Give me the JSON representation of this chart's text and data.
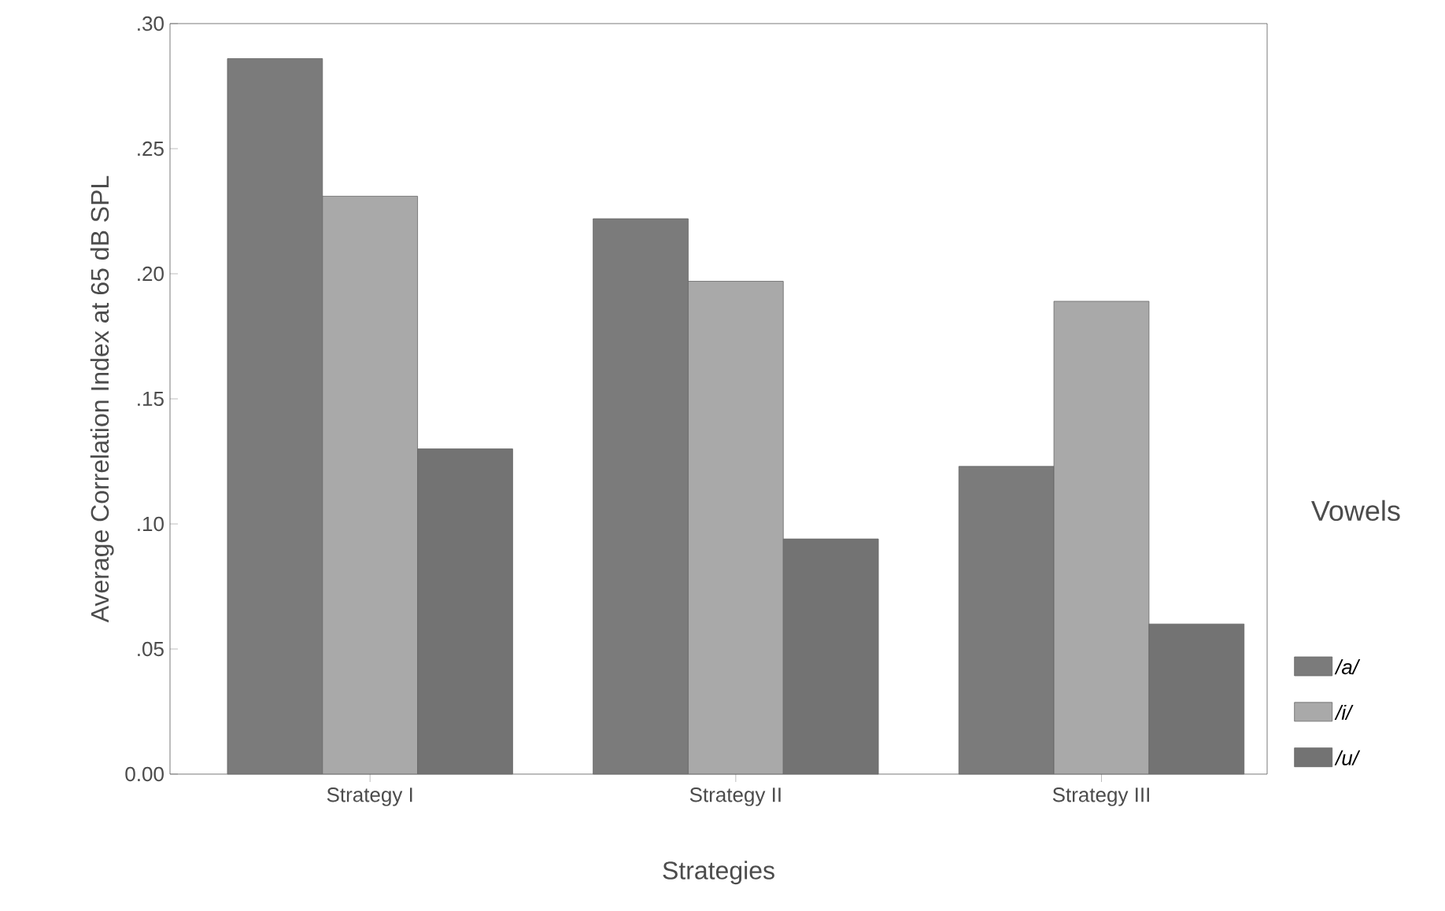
{
  "chart_data": {
    "type": "bar",
    "xlabel": "Strategies",
    "ylabel": "Average Correlation Index at 65 dB SPL",
    "legend_title": "Vowels",
    "categories": [
      "Strategy I",
      "Strategy II",
      "Strategy III"
    ],
    "series": [
      {
        "name": "/a/",
        "color": "#7b7b7b",
        "values": [
          0.286,
          0.222,
          0.123
        ]
      },
      {
        "name": "/i/",
        "color": "#a9a9a9",
        "values": [
          0.231,
          0.197,
          0.189
        ]
      },
      {
        "name": "/u/",
        "color": "#737373",
        "values": [
          0.13,
          0.094,
          0.06
        ]
      }
    ],
    "ylim": [
      0,
      0.3
    ],
    "yticks": [
      {
        "value": 0,
        "label": "0.00"
      },
      {
        "value": 0.05,
        "label": ".05"
      },
      {
        "value": 0.1,
        "label": ".10"
      },
      {
        "value": 0.15,
        "label": ".15"
      },
      {
        "value": 0.2,
        "label": ".20"
      },
      {
        "value": 0.25,
        "label": ".25"
      },
      {
        "value": 0.3,
        "label": ".30"
      }
    ],
    "grid": false,
    "legend": "right"
  }
}
